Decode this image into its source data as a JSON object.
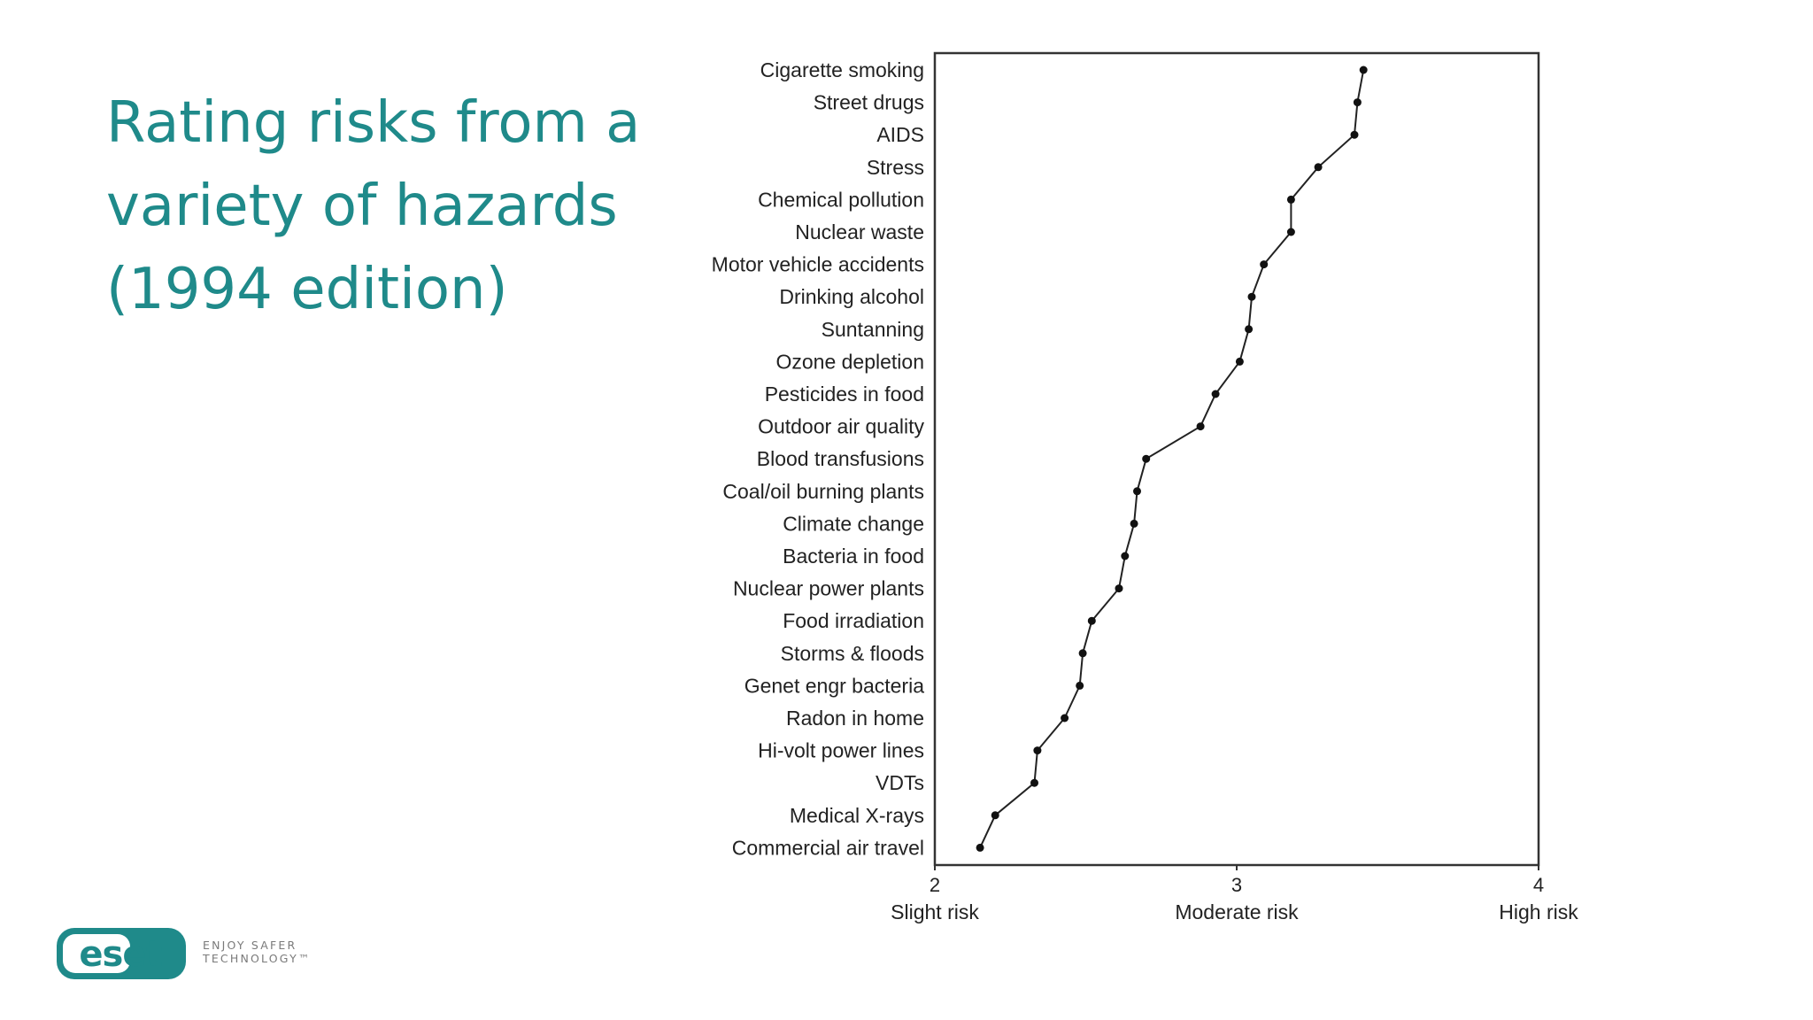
{
  "slide": {
    "title_lines": [
      "Rating risks from a",
      "variety of hazards",
      "(1994 edition)"
    ]
  },
  "brand": {
    "logo_text": "eset",
    "tagline_lines": [
      "ENJOY SAFER",
      "TECHNOLOGY™"
    ],
    "accent_color": "#1f8a8a"
  },
  "chart_data": {
    "type": "line",
    "orientation": "horizontal-categories",
    "title": "",
    "xlabel": "",
    "ylabel": "",
    "xlim": [
      2,
      4
    ],
    "x_ticks": [
      {
        "value": 2,
        "label": "2",
        "caption": "Slight risk"
      },
      {
        "value": 3,
        "label": "3",
        "caption": "Moderate risk"
      },
      {
        "value": 4,
        "label": "4",
        "caption": "High risk"
      }
    ],
    "grid": false,
    "legend": "none",
    "categories": [
      "Cigarette smoking",
      "Street drugs",
      "AIDS",
      "Stress",
      "Chemical pollution",
      "Nuclear waste",
      "Motor vehicle accidents",
      "Drinking alcohol",
      "Suntanning",
      "Ozone depletion",
      "Pesticides in food",
      "Outdoor air quality",
      "Blood transfusions",
      "Coal/oil burning plants",
      "Climate change",
      "Bacteria in food",
      "Nuclear power plants",
      "Food irradiation",
      "Storms & floods",
      "Genet engr bacteria",
      "Radon in home",
      "Hi-volt power lines",
      "VDTs",
      "Medical X-rays",
      "Commercial air travel"
    ],
    "values": [
      3.42,
      3.4,
      3.39,
      3.27,
      3.18,
      3.18,
      3.09,
      3.05,
      3.04,
      3.01,
      2.93,
      2.88,
      2.7,
      2.67,
      2.66,
      2.63,
      2.61,
      2.52,
      2.49,
      2.48,
      2.43,
      2.34,
      2.33,
      2.2,
      2.15
    ]
  }
}
